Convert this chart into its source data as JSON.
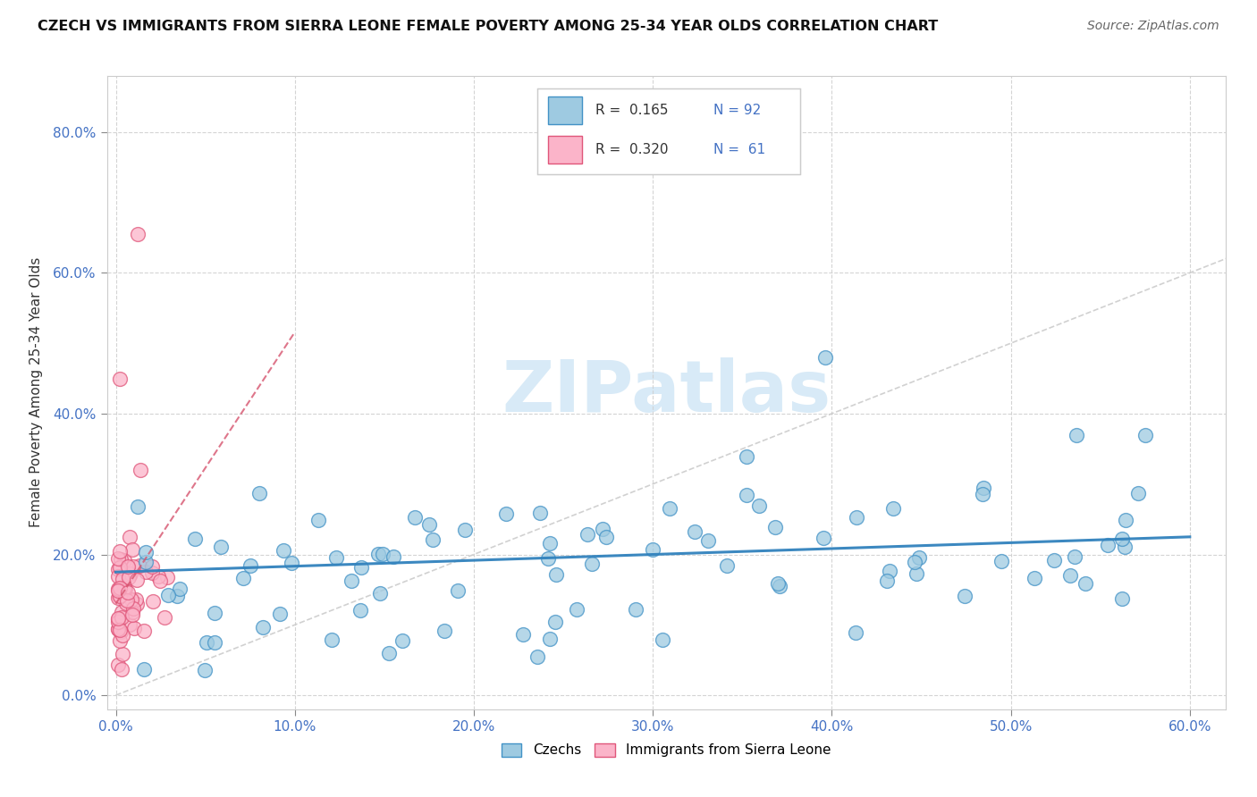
{
  "title": "CZECH VS IMMIGRANTS FROM SIERRA LEONE FEMALE POVERTY AMONG 25-34 YEAR OLDS CORRELATION CHART",
  "source": "Source: ZipAtlas.com",
  "xlabel_ticks": [
    0.0,
    0.1,
    0.2,
    0.3,
    0.4,
    0.5,
    0.6
  ],
  "ylabel_ticks": [
    0.0,
    0.2,
    0.4,
    0.6,
    0.8
  ],
  "xlim": [
    -0.005,
    0.62
  ],
  "ylim": [
    -0.02,
    0.88
  ],
  "ylabel": "Female Poverty Among 25-34 Year Olds",
  "R_czech": 0.165,
  "N_czech": 92,
  "R_sierraleone": 0.32,
  "N_sierraleone": 61,
  "color_czech_fill": "#9ecae1",
  "color_czech_edge": "#4292c6",
  "color_sl_fill": "#fbb4c9",
  "color_sl_edge": "#e0567a",
  "color_czech_line": "#3182bd",
  "color_sl_line": "#d6546e",
  "watermark_color": "#d8eaf7",
  "background_color": "#ffffff",
  "grid_color": "#d0d0d0"
}
